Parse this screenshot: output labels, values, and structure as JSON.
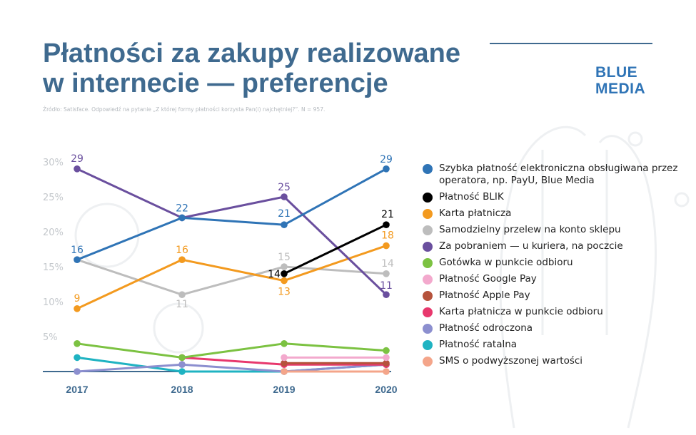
{
  "header": {
    "title_line1": "Płatności za zakupy realizowane",
    "title_line2": "w internecie — preferencje",
    "source": "Źródło: Satisface. Odpowiedź na pytanie „Z której formy płatności korzysta Pan(i) najchętniej?”. N = 957.",
    "brand_line1": "BLUE",
    "brand_line2": "MEDIA"
  },
  "chart_data": {
    "type": "line",
    "title": "Płatności za zakupy realizowane w internecie — preferencje",
    "x": [
      "2017",
      "2018",
      "2019",
      "2020"
    ],
    "ylim": [
      0,
      30
    ],
    "y_ticks": [
      5,
      10,
      15,
      20,
      25,
      30
    ],
    "y_tick_labels": [
      "5%",
      "10%",
      "15%",
      "20%",
      "25%",
      "30%"
    ],
    "grid": false,
    "legend_position": "right",
    "series": [
      {
        "name": "Szybka płatność elektroniczna obsługiwana przez operatora, np. PayU, Blue Media",
        "color": "#2f74b6",
        "values": [
          16,
          22,
          21,
          29
        ],
        "labels": [
          "16",
          "22",
          "21",
          "29"
        ]
      },
      {
        "name": "Płatność BLIK",
        "color": "#000000",
        "values": [
          null,
          null,
          14,
          21
        ],
        "labels": [
          null,
          null,
          "14",
          "21"
        ]
      },
      {
        "name": "Karta płatnicza",
        "color": "#f39a1f",
        "values": [
          9,
          16,
          13,
          18
        ],
        "labels": [
          "9",
          "16",
          "13",
          "18"
        ]
      },
      {
        "name": "Samodzielny przelew na konto sklepu",
        "color": "#bdbdbd",
        "values": [
          16,
          11,
          15,
          14
        ],
        "labels": [
          null,
          "11",
          "15",
          "14"
        ]
      },
      {
        "name": "Za pobraniem — u kuriera, na poczcie",
        "color": "#6a4f9e",
        "values": [
          29,
          22,
          25,
          11
        ],
        "labels": [
          "29",
          null,
          "25",
          "11"
        ]
      },
      {
        "name": "Gotówka w punkcie odbioru",
        "color": "#7cc242",
        "values": [
          4,
          2,
          4,
          3
        ],
        "labels": [
          null,
          null,
          null,
          null
        ]
      },
      {
        "name": "Płatność Google Pay",
        "color": "#f3a9cd",
        "values": [
          null,
          null,
          2,
          2
        ],
        "labels": [
          null,
          null,
          null,
          null
        ]
      },
      {
        "name": "Płatność Apple Pay",
        "color": "#b5533c",
        "values": [
          null,
          null,
          1.2,
          1.2
        ],
        "labels": [
          null,
          null,
          null,
          null
        ]
      },
      {
        "name": "Karta płatnicza w punkcie odbioru",
        "color": "#e8386d",
        "values": [
          null,
          2,
          1,
          1
        ],
        "labels": [
          null,
          null,
          null,
          null
        ]
      },
      {
        "name": "Płatność odroczona",
        "color": "#8c8fcf",
        "values": [
          0,
          1,
          0,
          1
        ],
        "labels": [
          null,
          null,
          null,
          null
        ]
      },
      {
        "name": "Płatność ratalna",
        "color": "#1fb3c2",
        "values": [
          2,
          0,
          0,
          1
        ],
        "labels": [
          null,
          null,
          null,
          null
        ]
      },
      {
        "name": "SMS o podwyższonej wartości",
        "color": "#f4a58a",
        "values": [
          null,
          null,
          0,
          0
        ],
        "labels": [
          null,
          null,
          null,
          null
        ]
      }
    ]
  }
}
